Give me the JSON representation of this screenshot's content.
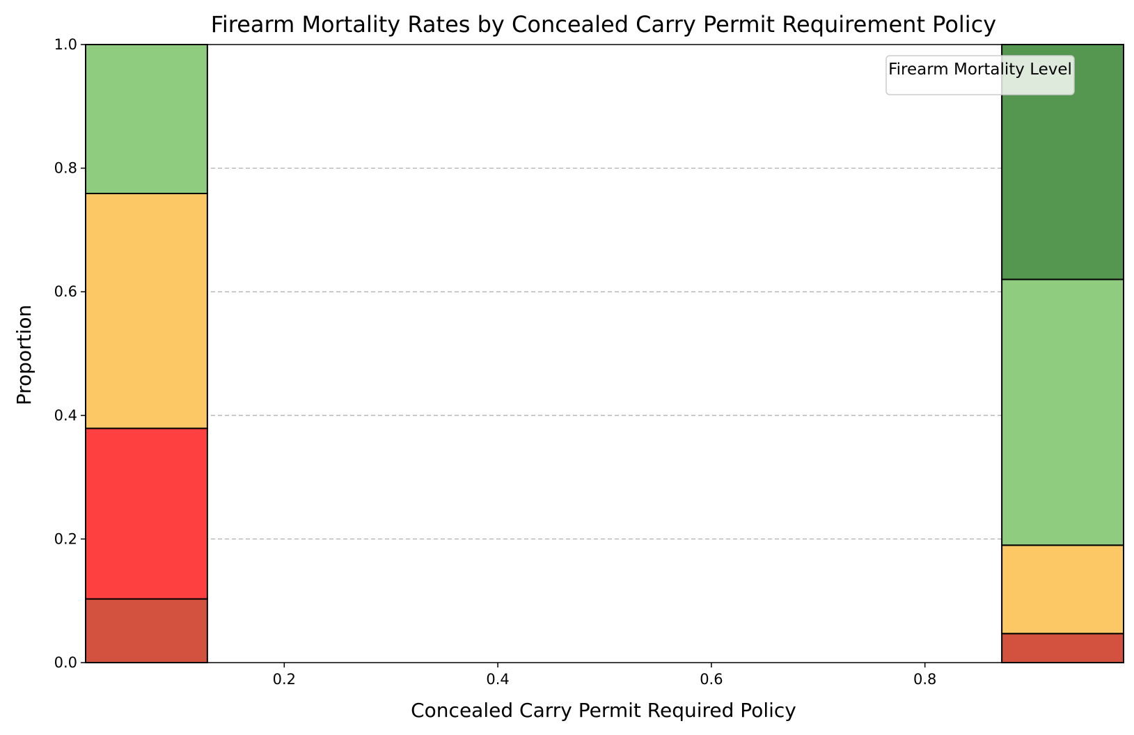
{
  "chart_data": {
    "type": "bar",
    "stacked": true,
    "title": "Firearm Mortality Rates by Concealed Carry Permit Requirement Policy",
    "xlabel": "Concealed Carry Permit Required Policy",
    "ylabel": "Proportion",
    "xlim": [
      0.014,
      0.986
    ],
    "ylim": [
      0,
      1.0
    ],
    "x_ticks": [
      "0.2",
      "0.4",
      "0.6",
      "0.8"
    ],
    "y_ticks": [
      "0.0",
      "0.2",
      "0.4",
      "0.6",
      "0.8",
      "1.0"
    ],
    "grid": "y-dashed",
    "legend": {
      "title": "Firearm Mortality Level",
      "placement": "top-right",
      "entries": []
    },
    "bins": [
      {
        "x_range": [
          0.014,
          0.128
        ]
      },
      {
        "x_range": [
          0.872,
          0.986
        ]
      }
    ],
    "segments_bottom_to_top": [
      {
        "bin": 0,
        "color": "#d3513f",
        "y_range": [
          0.0,
          0.103
        ]
      },
      {
        "bin": 0,
        "color": "#ff4040",
        "y_range": [
          0.103,
          0.379
        ]
      },
      {
        "bin": 0,
        "color": "#fbc865",
        "y_range": [
          0.379,
          0.759
        ]
      },
      {
        "bin": 0,
        "color": "#8fcc80",
        "y_range": [
          0.759,
          1.0
        ]
      },
      {
        "bin": 1,
        "color": "#d3513f",
        "y_range": [
          0.0,
          0.047
        ]
      },
      {
        "bin": 1,
        "color": "#fbc865",
        "y_range": [
          0.047,
          0.19
        ]
      },
      {
        "bin": 1,
        "color": "#8fcc80",
        "y_range": [
          0.19,
          0.62
        ]
      },
      {
        "bin": 1,
        "color": "#559650",
        "y_range": [
          0.62,
          1.0
        ]
      }
    ]
  }
}
